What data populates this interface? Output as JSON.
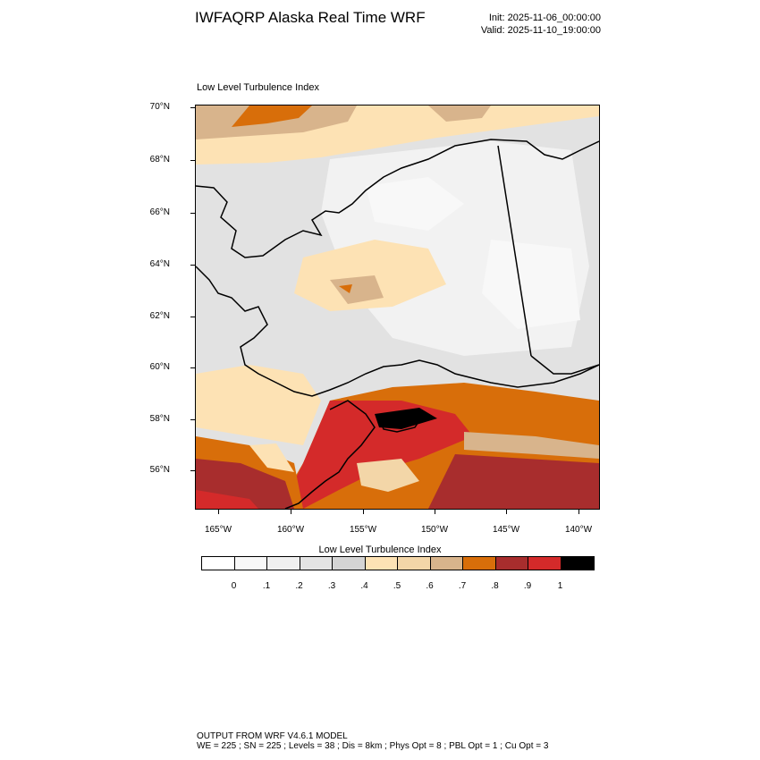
{
  "header": {
    "title": "IWFAQRP Alaska Real Time WRF",
    "init": "Init: 2025-11-06_00:00:00",
    "valid": "Valid: 2025-11-10_19:00:00"
  },
  "plot": {
    "title": "Low Level Turbulence Index",
    "lat_labels": [
      "70°N",
      "68°N",
      "66°N",
      "64°N",
      "62°N",
      "60°N",
      "58°N",
      "56°N"
    ],
    "lon_labels": [
      "165°W",
      "160°W",
      "155°W",
      "150°W",
      "145°W",
      "140°W"
    ]
  },
  "colorbar": {
    "title": "Low Level Turbulence Index",
    "colors": [
      "#ffffff",
      "#f8f8f8",
      "#f0f0f0",
      "#e4e4e4",
      "#d4d4d4",
      "#fde2b4",
      "#f3d6a8",
      "#d8b48c",
      "#d86e0a",
      "#a82d2d",
      "#d42a2a",
      "#000000"
    ],
    "labels": [
      "0",
      ".1",
      ".2",
      ".3",
      ".4",
      ".5",
      ".6",
      ".7",
      ".8",
      ".9",
      "1"
    ]
  },
  "footer": {
    "line1": "OUTPUT FROM WRF V4.6.1 MODEL",
    "line2": "WE = 225 ; SN = 225 ; Levels = 38 ; Dis = 8km ; Phys Opt = 8 ; PBL Opt = 1 ; Cu Opt = 3"
  }
}
